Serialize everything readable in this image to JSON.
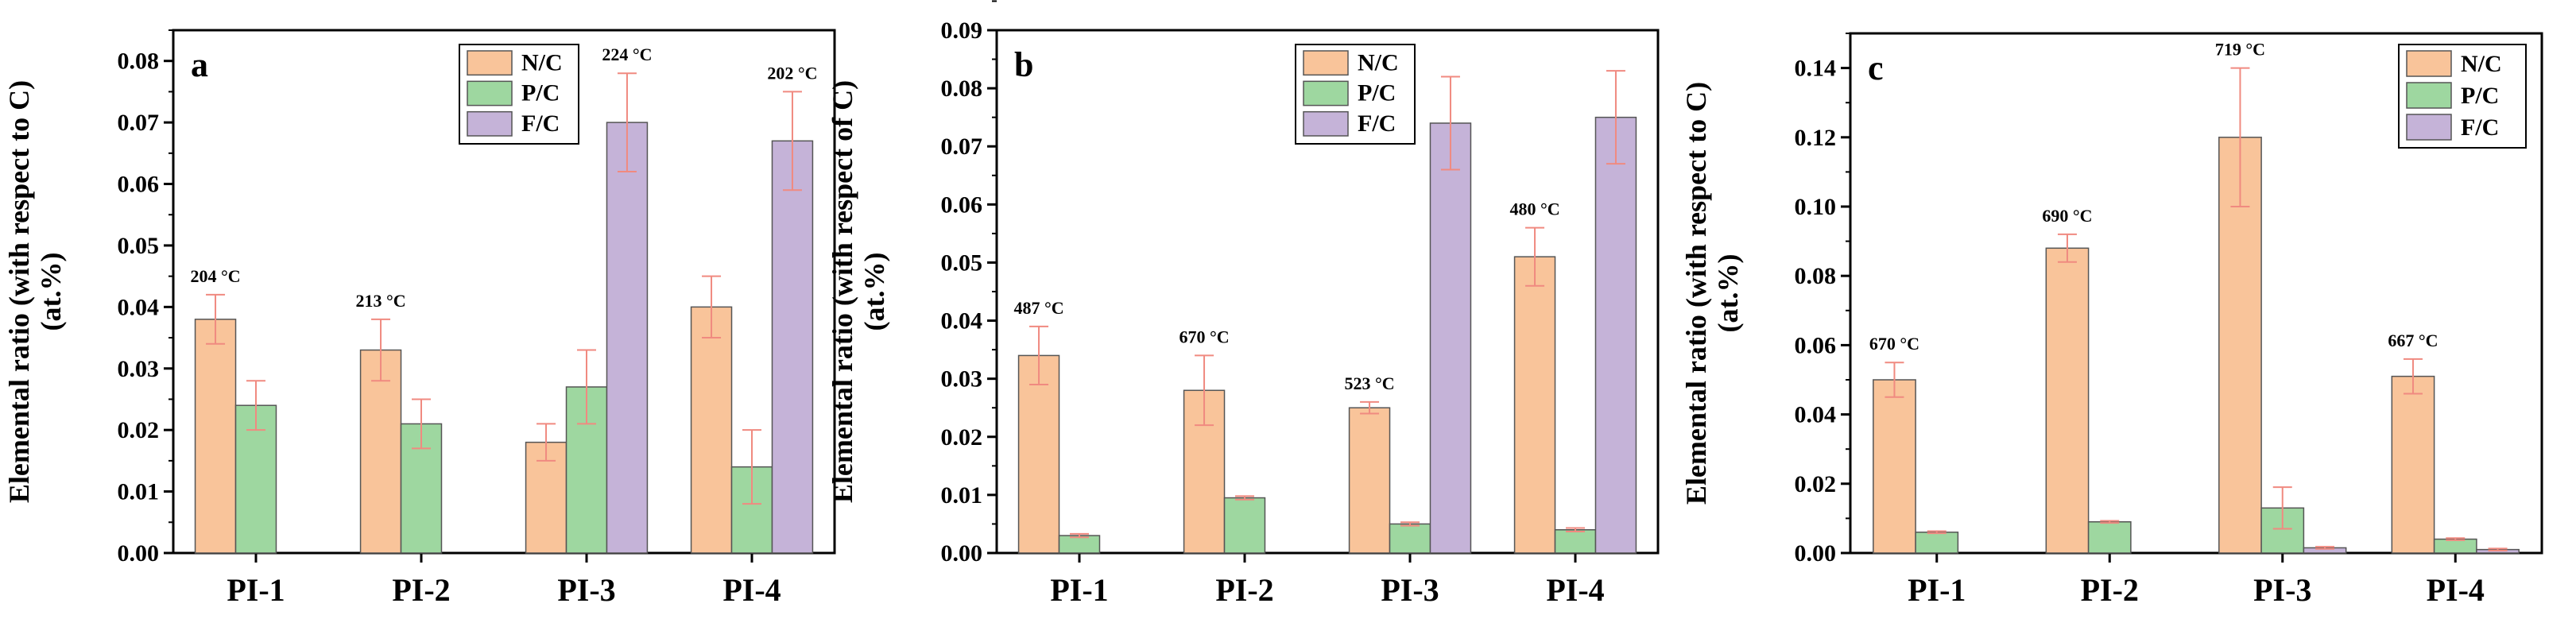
{
  "figure": {
    "series_colors": {
      "N/C": "#f9c49a",
      "P/C": "#9ed7a0",
      "F/C": "#c5b3d8"
    },
    "error_color": "#f08a80"
  },
  "chart_data": [
    {
      "type": "bar",
      "panel_label": "a",
      "ylabel_line1": "Elemental ratio (with respect to C)",
      "ylabel_line2": "(at.%)",
      "ylim": [
        0,
        0.085
      ],
      "yticks": [
        "0.00",
        "0.01",
        "0.02",
        "0.03",
        "0.04",
        "0.05",
        "0.06",
        "0.07",
        "0.08"
      ],
      "ytick_values": [
        0,
        0.01,
        0.02,
        0.03,
        0.04,
        0.05,
        0.06,
        0.07,
        0.08
      ],
      "categories": [
        "PI-1",
        "PI-2",
        "PI-3",
        "PI-4"
      ],
      "legend": [
        "N/C",
        "P/C",
        "F/C"
      ],
      "series": [
        {
          "name": "N/C",
          "values": [
            0.038,
            0.033,
            0.018,
            0.04
          ],
          "errors": [
            0.004,
            0.005,
            0.003,
            0.005
          ]
        },
        {
          "name": "P/C",
          "values": [
            0.024,
            0.021,
            0.027,
            0.014
          ],
          "errors": [
            0.004,
            0.004,
            0.006,
            0.006
          ]
        },
        {
          "name": "F/C",
          "values": [
            null,
            null,
            0.07,
            0.067
          ],
          "errors": [
            null,
            null,
            0.008,
            0.008
          ]
        }
      ],
      "annotations": [
        {
          "category": "PI-1",
          "series": "N/C",
          "text": "204 °C"
        },
        {
          "category": "PI-2",
          "series": "N/C",
          "text": "213 °C"
        },
        {
          "category": "PI-3",
          "series": "F/C",
          "text": "224 °C"
        },
        {
          "category": "PI-4",
          "series": "F/C",
          "text": "202 °C"
        }
      ]
    },
    {
      "type": "bar",
      "panel_label": "b",
      "ylabel_line1": "Elemental ratio (with respect of C)",
      "ylabel_line2": "(at.%)",
      "ylim": [
        0,
        0.09
      ],
      "yticks": [
        "0.00",
        "0.01",
        "0.02",
        "0.03",
        "0.04",
        "0.05",
        "0.06",
        "0.07",
        "0.08",
        "0.09"
      ],
      "ytick_values": [
        0,
        0.01,
        0.02,
        0.03,
        0.04,
        0.05,
        0.06,
        0.07,
        0.08,
        0.09
      ],
      "categories": [
        "PI-1",
        "PI-2",
        "PI-3",
        "PI-4"
      ],
      "legend": [
        "N/C",
        "P/C",
        "F/C"
      ],
      "series": [
        {
          "name": "N/C",
          "values": [
            0.034,
            0.028,
            0.025,
            0.051
          ],
          "errors": [
            0.005,
            0.006,
            0.001,
            0.005
          ]
        },
        {
          "name": "P/C",
          "values": [
            0.003,
            0.0095,
            0.005,
            0.004
          ],
          "errors": [
            0.0003,
            0.0003,
            0.0003,
            0.0003
          ]
        },
        {
          "name": "F/C",
          "values": [
            null,
            null,
            0.074,
            0.075
          ],
          "errors": [
            null,
            null,
            0.008,
            0.008
          ]
        }
      ],
      "annotations": [
        {
          "category": "PI-1",
          "series": "N/C",
          "text": "487 °C"
        },
        {
          "category": "PI-2",
          "series": "N/C",
          "text": "670 °C"
        },
        {
          "category": "PI-3",
          "series": "N/C",
          "text": "523 °C"
        },
        {
          "category": "PI-4",
          "series": "N/C",
          "text": "480 °C"
        }
      ]
    },
    {
      "type": "bar",
      "panel_label": "c",
      "ylabel_line1": "Elemental ratio (with respect to C)",
      "ylabel_line2": "(at.%)",
      "ylim": [
        0,
        0.15
      ],
      "yticks": [
        "0.00",
        "0.02",
        "0.04",
        "0.06",
        "0.08",
        "0.10",
        "0.12",
        "0.14"
      ],
      "ytick_values": [
        0,
        0.02,
        0.04,
        0.06,
        0.08,
        0.1,
        0.12,
        0.14
      ],
      "categories": [
        "PI-1",
        "PI-2",
        "PI-3",
        "PI-4"
      ],
      "legend": [
        "N/C",
        "P/C",
        "F/C"
      ],
      "series": [
        {
          "name": "N/C",
          "values": [
            0.05,
            0.088,
            0.12,
            0.051
          ],
          "errors": [
            0.005,
            0.004,
            0.02,
            0.005
          ]
        },
        {
          "name": "P/C",
          "values": [
            0.006,
            0.009,
            0.013,
            0.004
          ],
          "errors": [
            0.0003,
            0.0003,
            0.006,
            0.0003
          ]
        },
        {
          "name": "F/C",
          "values": [
            null,
            null,
            0.0015,
            0.001
          ],
          "errors": [
            null,
            null,
            0.0003,
            0.0003
          ]
        }
      ],
      "annotations": [
        {
          "category": "PI-1",
          "series": "N/C",
          "text": "670 °C"
        },
        {
          "category": "PI-2",
          "series": "N/C",
          "text": "690 °C"
        },
        {
          "category": "PI-3",
          "series": "N/C",
          "text": "719 °C"
        },
        {
          "category": "PI-4",
          "series": "N/C",
          "text": "667 °C"
        }
      ]
    }
  ]
}
